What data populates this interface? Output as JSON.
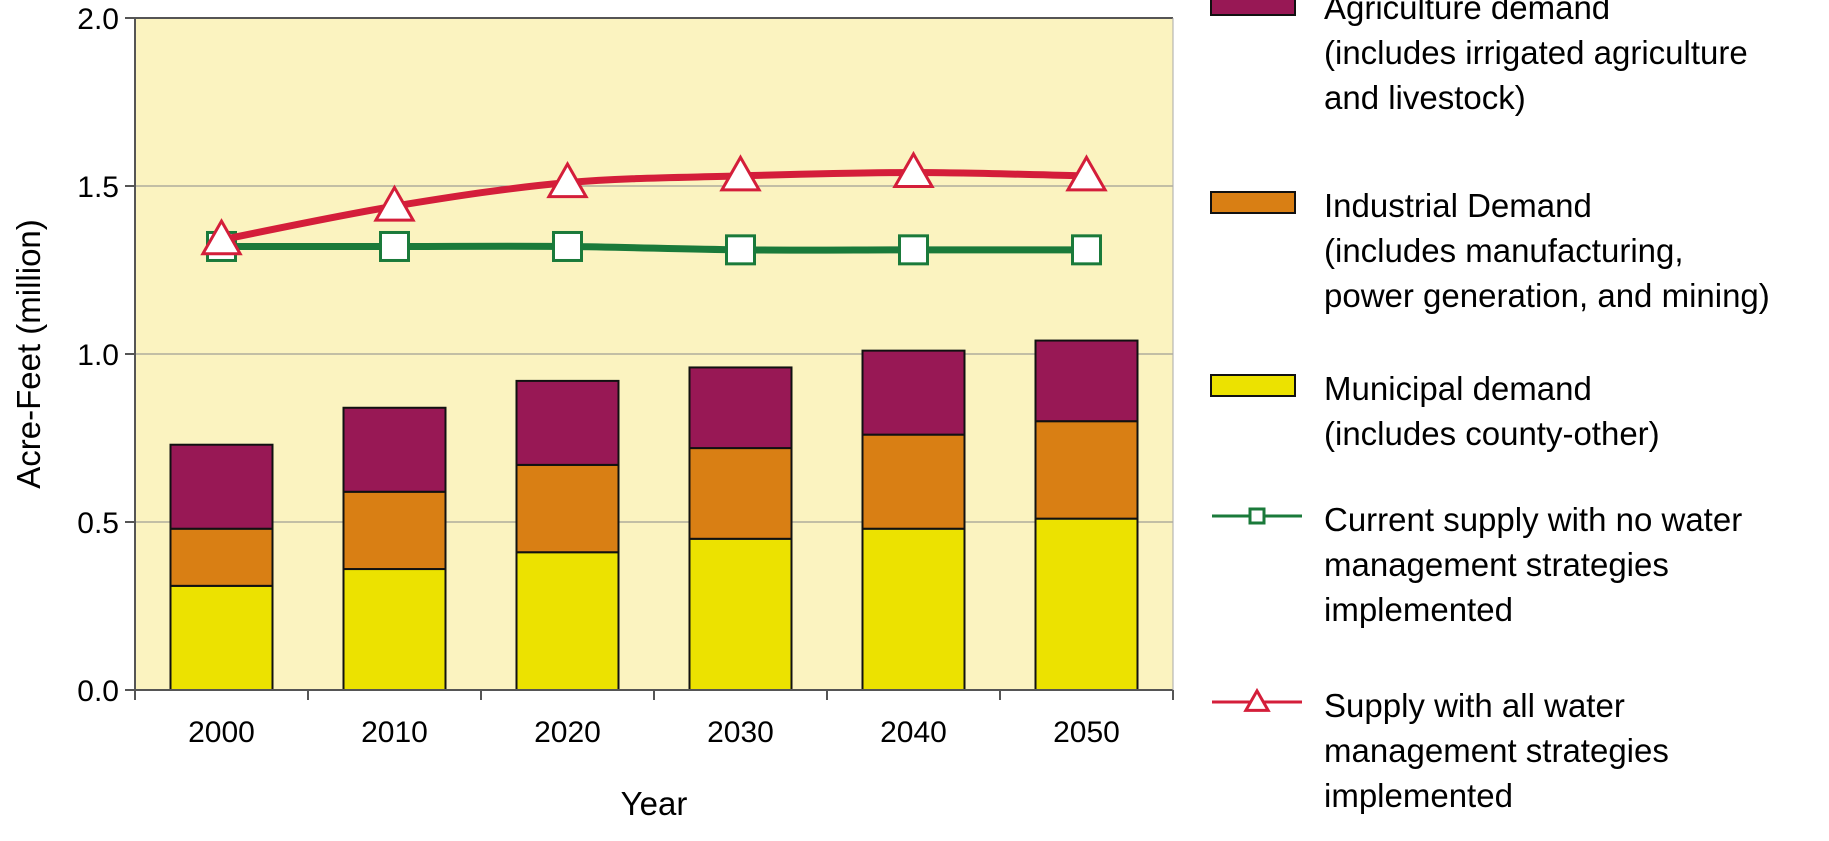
{
  "chart_data": {
    "type": "bar",
    "xlabel": "Year",
    "ylabel": "Acre-Feet (million)",
    "ylim": [
      0,
      2.0
    ],
    "yticks": [
      "0.0",
      "0.5",
      "1.0",
      "1.5",
      "2.0"
    ],
    "categories": [
      "2000",
      "2010",
      "2020",
      "2030",
      "2040",
      "2050"
    ],
    "stacked": true,
    "plot_background": "#fbf3c0",
    "series": [
      {
        "name": "Municipal demand\n(includes county-other)",
        "kind": "bar",
        "color": "#ece200",
        "values": [
          0.31,
          0.36,
          0.41,
          0.45,
          0.48,
          0.51
        ]
      },
      {
        "name": "Industrial Demand\n(includes manufacturing,\npower generation, and mining)",
        "kind": "bar",
        "color": "#d97f14",
        "values": [
          0.17,
          0.23,
          0.26,
          0.27,
          0.28,
          0.29
        ]
      },
      {
        "name": "Agriculture demand\n(includes irrigated agriculture\nand livestock)",
        "kind": "bar",
        "color": "#981855",
        "values": [
          0.25,
          0.25,
          0.25,
          0.24,
          0.25,
          0.24
        ]
      },
      {
        "name": "Current supply with no water\nmanagement strategies\nimplemented",
        "kind": "line",
        "marker": "square",
        "color": "#1a7a3a",
        "values": [
          1.32,
          1.32,
          1.32,
          1.31,
          1.31,
          1.31
        ]
      },
      {
        "name": "Supply with all water\nmanagement strategies\nimplemented",
        "kind": "line",
        "marker": "triangle",
        "color": "#d41e3a",
        "values": [
          1.34,
          1.44,
          1.51,
          1.53,
          1.54,
          1.53
        ]
      }
    ],
    "legend_order": [
      2,
      1,
      0,
      3,
      4
    ],
    "legend_position": "right"
  }
}
